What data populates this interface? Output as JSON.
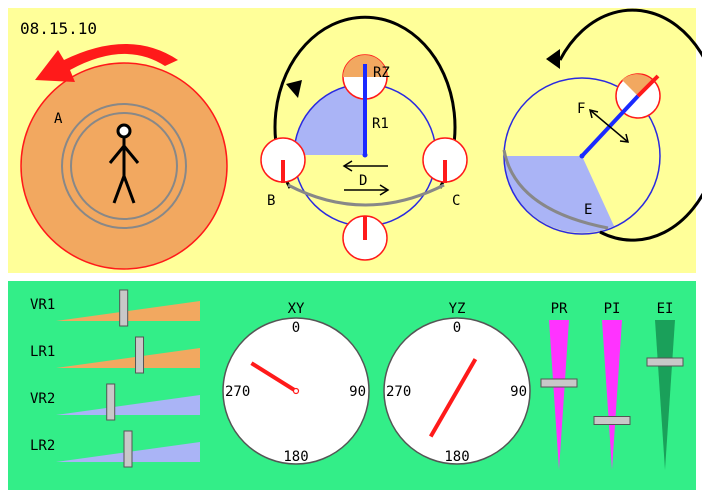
{
  "header": {
    "date": "08.15.10"
  },
  "diagrams": {
    "person_view": {
      "label": "A",
      "icon": "stick-figure-icon"
    },
    "side_view": {
      "top_label": "RZ",
      "radius_label": "R1",
      "left_label": "B",
      "right_label": "C",
      "motion_label": "D"
    },
    "rotation_view": {
      "arrow_label": "F",
      "sector_label": "E"
    }
  },
  "sliders": [
    {
      "label": "VR1",
      "color": "#f2a860",
      "value": 0.47
    },
    {
      "label": "LR1",
      "color": "#f2a860",
      "value": 0.58
    },
    {
      "label": "VR2",
      "color": "#aab4f6",
      "value": 0.38
    },
    {
      "label": "LR2",
      "color": "#aab4f6",
      "value": 0.5
    }
  ],
  "dials": [
    {
      "title": "XY",
      "top": "0",
      "right": "90",
      "bottom": "180",
      "left": "270",
      "needle_from_deg": 122,
      "needle_to_deg": 302,
      "needle_len": 0.72
    },
    {
      "title": "YZ",
      "top": "0",
      "right": "90",
      "bottom": "180",
      "left": "270",
      "needle_from_deg": 30,
      "needle_to_deg": 210,
      "needle_len": 0.72
    }
  ],
  "vertical_sliders": [
    {
      "label": "PR",
      "color": "#ff33ff",
      "value": 0.58
    },
    {
      "label": "PI",
      "color": "#ff33ff",
      "value": 0.33
    },
    {
      "label": "EI",
      "color": "#1aa05a",
      "value": 0.72
    }
  ],
  "colors": {
    "background": "#ffff99",
    "panel": "#33ee88",
    "orange": "#f2a860",
    "blue": "#aab4f6",
    "red": "#ff1a1a"
  }
}
